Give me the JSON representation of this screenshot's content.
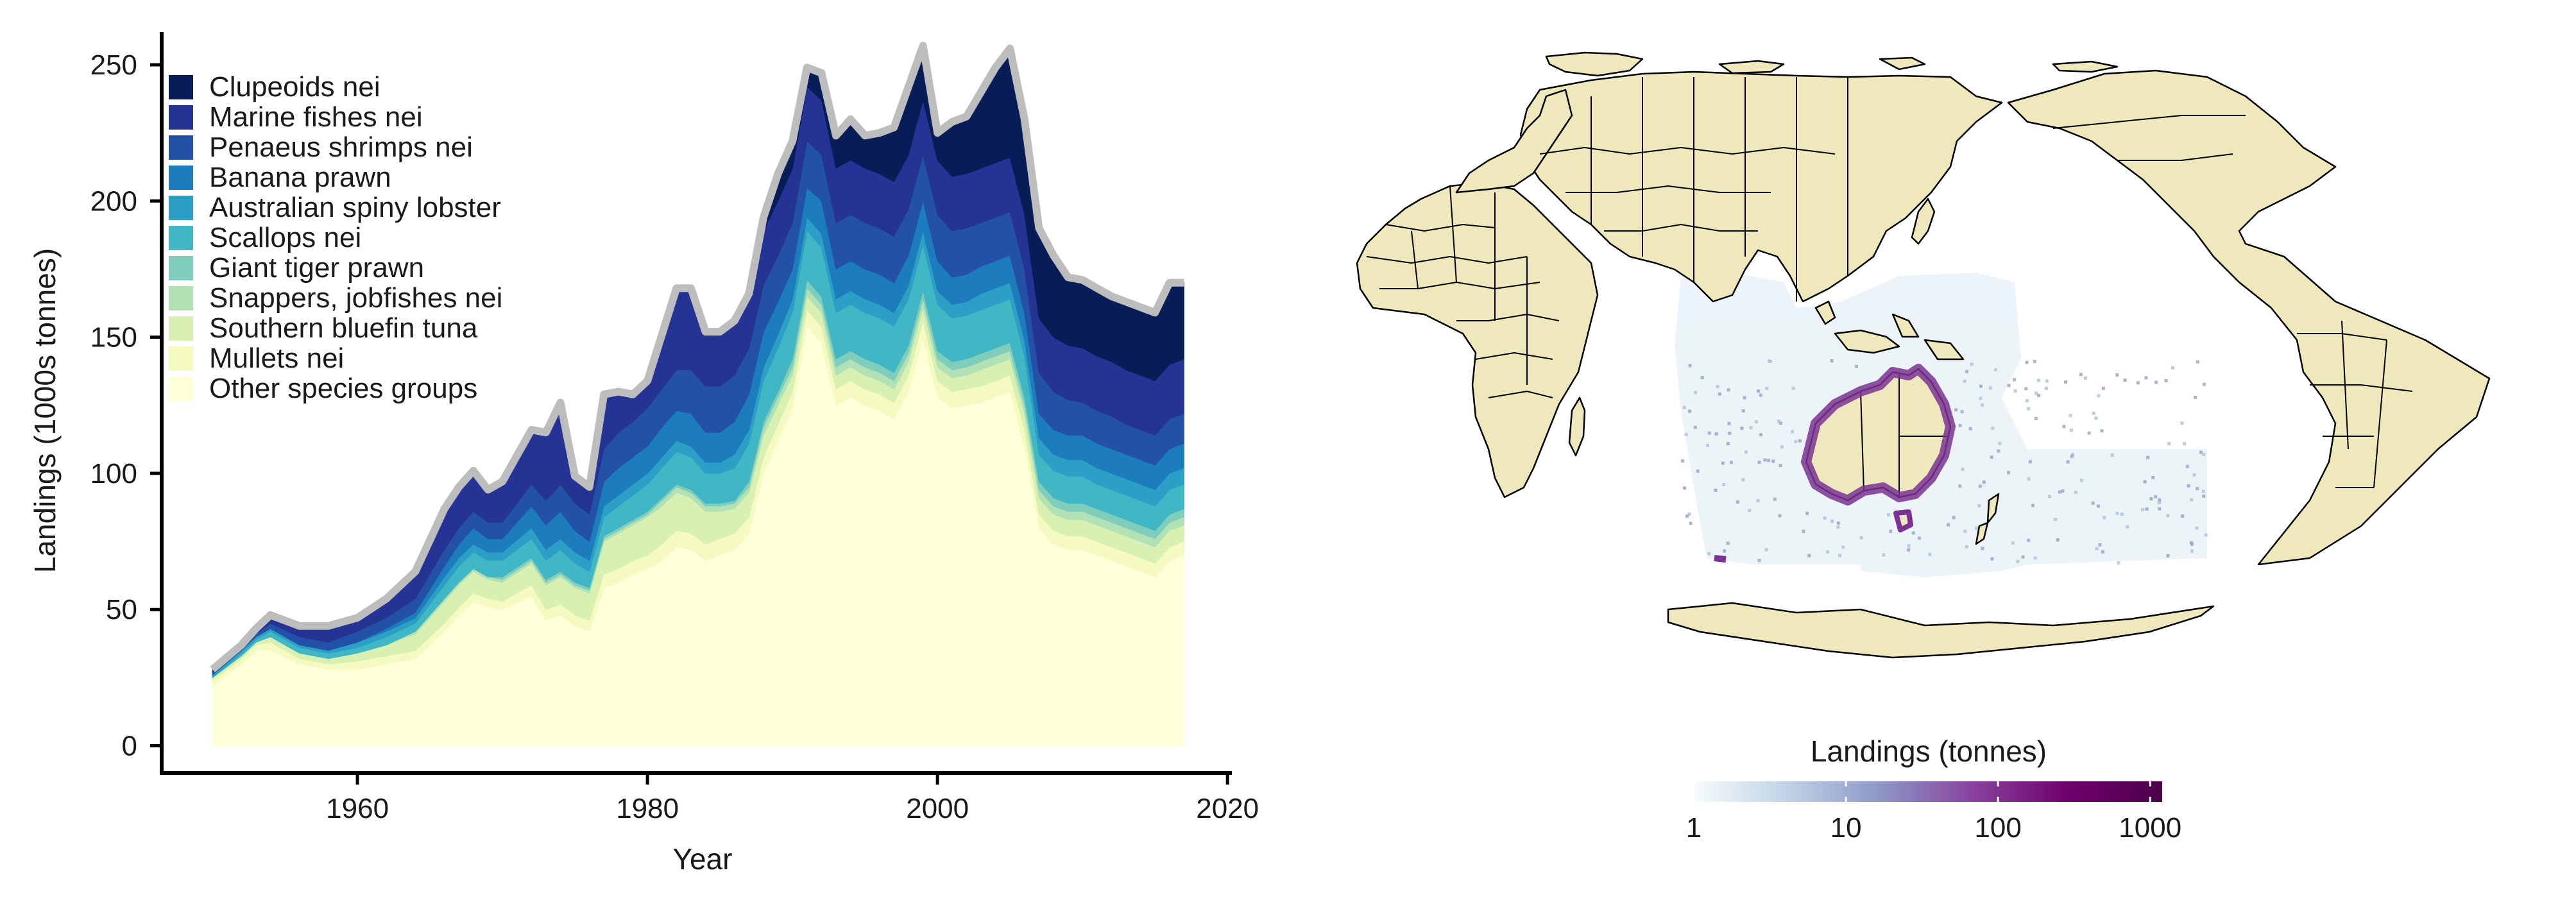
{
  "chart_data": [
    {
      "type": "area",
      "stacked": true,
      "title": "",
      "xlabel": "Year",
      "ylabel": "Landings (1000s tonnes)",
      "xlim": [
        1946.5,
        2020.3
      ],
      "ylim": [
        -10,
        262
      ],
      "xticks": [
        1960,
        1980,
        2000,
        2020
      ],
      "yticks": [
        0,
        50,
        100,
        150,
        200,
        250
      ],
      "grid": false,
      "legend_position": "top-left",
      "x": [
        1950,
        1952,
        1953,
        1954,
        1956,
        1958,
        1960,
        1962,
        1964,
        1966,
        1967,
        1968,
        1969,
        1970,
        1972,
        1973,
        1974,
        1975,
        1976,
        1977,
        1978,
        1979,
        1980,
        1981,
        1982,
        1983,
        1984,
        1985,
        1986,
        1987,
        1988,
        1989,
        1990,
        1991,
        1992,
        1993,
        1994,
        1995,
        1996,
        1997,
        1998,
        1999,
        2000,
        2001,
        2002,
        2003,
        2004,
        2005,
        2006,
        2007,
        2008,
        2009,
        2010,
        2011,
        2012,
        2013,
        2014,
        2015,
        2016,
        2017
      ],
      "series": [
        {
          "name": "Other species groups",
          "color": "#ffffd9",
          "values": [
            22,
            30,
            35,
            35,
            30,
            28,
            28,
            30,
            32,
            42,
            48,
            53,
            51,
            50,
            55,
            46,
            48,
            44,
            42,
            58,
            60,
            63,
            65,
            68,
            73,
            72,
            68,
            70,
            72,
            78,
            100,
            112,
            124,
            154,
            148,
            125,
            128,
            125,
            123,
            120,
            130,
            150,
            128,
            124,
            125,
            126,
            128,
            130,
            110,
            80,
            74,
            72,
            72,
            70,
            68,
            66,
            64,
            62,
            68,
            70
          ]
        },
        {
          "name": "Mullets nei",
          "color": "#f4fac0",
          "values": [
            2,
            2,
            2,
            3,
            2,
            2,
            3,
            3,
            3,
            3,
            3,
            3,
            3,
            3,
            4,
            4,
            4,
            4,
            4,
            5,
            5,
            5,
            5,
            6,
            6,
            6,
            6,
            6,
            6,
            6,
            6,
            6,
            6,
            6,
            6,
            6,
            6,
            6,
            6,
            6,
            6,
            6,
            6,
            6,
            6,
            6,
            6,
            6,
            6,
            5,
            5,
            5,
            5,
            5,
            5,
            5,
            5,
            5,
            5,
            5
          ]
        },
        {
          "name": "Southern bluefin tuna",
          "color": "#d9f0b3",
          "values": [
            1,
            1,
            1,
            2,
            2,
            2,
            3,
            4,
            6,
            8,
            8,
            8,
            7,
            7,
            8,
            9,
            10,
            10,
            10,
            12,
            13,
            13,
            14,
            14,
            14,
            13,
            12,
            10,
            9,
            9,
            8,
            7,
            6,
            5,
            5,
            5,
            5,
            5,
            5,
            5,
            5,
            5,
            5,
            5,
            5,
            6,
            6,
            6,
            6,
            6,
            6,
            6,
            6,
            6,
            6,
            6,
            6,
            6,
            6,
            6
          ]
        },
        {
          "name": "Snappers, jobfishes nei",
          "color": "#b3e1b6",
          "values": [
            0,
            0,
            0,
            0,
            0,
            0,
            0,
            0,
            1,
            1,
            1,
            1,
            1,
            1,
            1,
            1,
            1,
            1,
            1,
            1,
            1,
            1,
            1,
            2,
            2,
            2,
            2,
            2,
            2,
            2,
            3,
            3,
            3,
            3,
            3,
            3,
            3,
            3,
            3,
            3,
            3,
            3,
            3,
            3,
            3,
            3,
            3,
            3,
            3,
            3,
            3,
            3,
            3,
            3,
            3,
            3,
            3,
            3,
            3,
            3
          ]
        },
        {
          "name": "Giant tiger prawn",
          "color": "#7fcdbb",
          "values": [
            0,
            0,
            0,
            0,
            0,
            0,
            0,
            0,
            0,
            0,
            0,
            0,
            0,
            1,
            1,
            1,
            1,
            1,
            1,
            1,
            1,
            1,
            1,
            1,
            1,
            1,
            1,
            1,
            1,
            2,
            2,
            2,
            3,
            3,
            3,
            3,
            3,
            3,
            3,
            3,
            3,
            3,
            3,
            3,
            3,
            3,
            3,
            3,
            3,
            3,
            3,
            3,
            3,
            3,
            3,
            3,
            3,
            3,
            3,
            3
          ]
        },
        {
          "name": "Scallops nei",
          "color": "#41b6c4",
          "values": [
            0,
            1,
            1,
            2,
            2,
            2,
            2,
            3,
            3,
            5,
            6,
            6,
            6,
            6,
            7,
            7,
            8,
            7,
            6,
            7,
            8,
            9,
            10,
            11,
            12,
            12,
            11,
            11,
            12,
            14,
            15,
            16,
            17,
            18,
            18,
            17,
            17,
            17,
            17,
            17,
            17,
            17,
            17,
            16,
            16,
            16,
            16,
            16,
            15,
            10,
            10,
            10,
            10,
            9,
            9,
            9,
            9,
            9,
            9,
            9
          ]
        },
        {
          "name": "Australian spiny lobster",
          "color": "#2c9fc6",
          "values": [
            1,
            1,
            1,
            1,
            1,
            1,
            2,
            2,
            2,
            3,
            3,
            3,
            3,
            3,
            4,
            4,
            4,
            4,
            4,
            4,
            4,
            4,
            4,
            4,
            4,
            4,
            4,
            4,
            5,
            5,
            5,
            5,
            5,
            5,
            5,
            5,
            5,
            5,
            5,
            5,
            5,
            5,
            5,
            5,
            5,
            6,
            6,
            6,
            6,
            6,
            6,
            6,
            6,
            6,
            6,
            6,
            6,
            6,
            6,
            6
          ]
        },
        {
          "name": "Banana prawn",
          "color": "#1d7cbb",
          "values": [
            0,
            0,
            0,
            0,
            0,
            0,
            0,
            1,
            2,
            4,
            5,
            6,
            5,
            5,
            8,
            9,
            10,
            8,
            7,
            9,
            10,
            10,
            10,
            11,
            11,
            12,
            11,
            11,
            12,
            13,
            13,
            12,
            11,
            11,
            12,
            11,
            11,
            11,
            11,
            11,
            11,
            11,
            11,
            10,
            10,
            10,
            10,
            10,
            10,
            9,
            9,
            9,
            9,
            9,
            9,
            9,
            9,
            9,
            9,
            9
          ]
        },
        {
          "name": "Penaeus shrimps nei",
          "color": "#2351a7",
          "values": [
            1,
            1,
            1,
            2,
            3,
            3,
            4,
            4,
            5,
            6,
            6,
            6,
            6,
            6,
            8,
            9,
            10,
            10,
            10,
            12,
            13,
            13,
            14,
            14,
            15,
            16,
            17,
            17,
            17,
            17,
            17,
            17,
            17,
            17,
            17,
            17,
            17,
            17,
            17,
            17,
            17,
            17,
            17,
            17,
            17,
            16,
            16,
            16,
            16,
            15,
            14,
            13,
            12,
            12,
            12,
            11,
            11,
            11,
            11,
            11
          ]
        },
        {
          "name": "Marine fishes nei",
          "color": "#253494",
          "values": [
            1,
            1,
            2,
            3,
            4,
            6,
            5,
            7,
            10,
            15,
            15,
            15,
            12,
            15,
            20,
            25,
            30,
            10,
            10,
            20,
            15,
            10,
            10,
            20,
            30,
            30,
            20,
            20,
            20,
            20,
            20,
            20,
            20,
            20,
            20,
            20,
            20,
            20,
            20,
            20,
            20,
            20,
            20,
            20,
            20,
            20,
            20,
            20,
            20,
            20,
            20,
            20,
            20,
            20,
            20,
            20,
            20,
            20,
            20,
            20
          ]
        },
        {
          "name": "Clupeoids nei",
          "color": "#081d58",
          "values": [
            0,
            0,
            0,
            0,
            0,
            0,
            0,
            0,
            0,
            0,
            0,
            0,
            0,
            0,
            0,
            0,
            0,
            0,
            0,
            0,
            0,
            0,
            0,
            0,
            0,
            0,
            0,
            0,
            0,
            0,
            5,
            10,
            10,
            7,
            10,
            12,
            15,
            12,
            15,
            20,
            25,
            20,
            10,
            20,
            21,
            28,
            35,
            40,
            35,
            33,
            30,
            25,
            25,
            25,
            24,
            25,
            25,
            25,
            30,
            28
          ]
        }
      ]
    },
    {
      "type": "map",
      "legend": {
        "title": "Landings (tonnes)",
        "scale": "log",
        "range": [
          1,
          1200
        ],
        "ticks": [
          "1",
          "10",
          "100",
          "1000"
        ],
        "tick_values": [
          1,
          10,
          100,
          1000
        ],
        "colors": [
          "#f7fcfd",
          "#bfd3e6",
          "#8c96c6",
          "#88419d",
          "#6e016b",
          "#4d004b"
        ]
      },
      "land_color": "#efe8bd",
      "border_color": "#000000",
      "coast_highlight_color": "#7b3294",
      "sea_tint_color": "#eaf3f8"
    }
  ]
}
